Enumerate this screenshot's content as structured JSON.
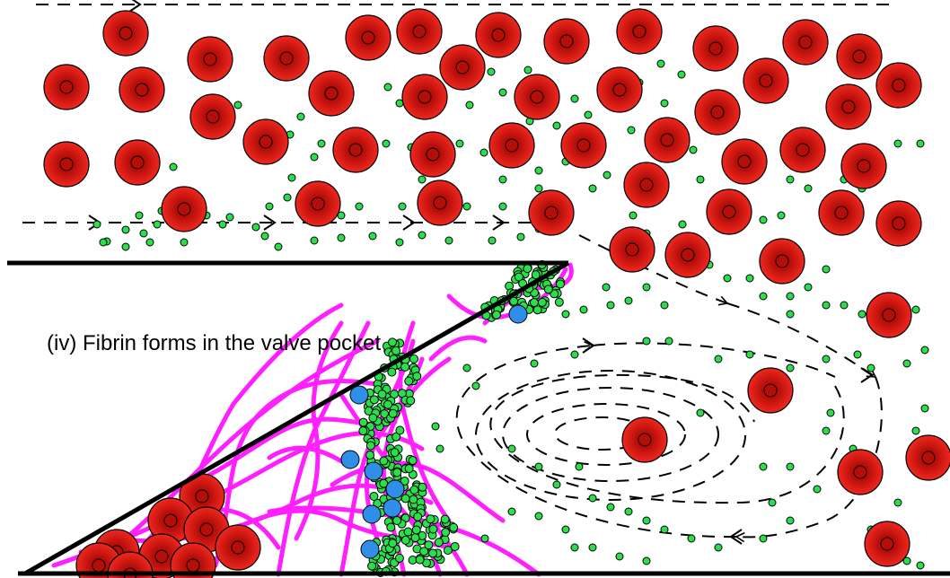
{
  "caption": "(iv) Fibrin forms in the valve pocket",
  "colors": {
    "background": "#ffffff",
    "red_blood_cell": "#e8251c",
    "red_blood_cell_center": "#b50d08",
    "platelet": "#29e04b",
    "leukocyte": "#2f8fe8",
    "fibrin": "#ff1fff",
    "vessel_wall": "#000000",
    "flow_line": "#000000"
  },
  "legend": {
    "red_blood_cell": "red-blood-cell-icon",
    "platelet": "platelet-icon",
    "leukocyte": "leukocyte-icon",
    "fibrin": "fibrin-strand"
  }
}
